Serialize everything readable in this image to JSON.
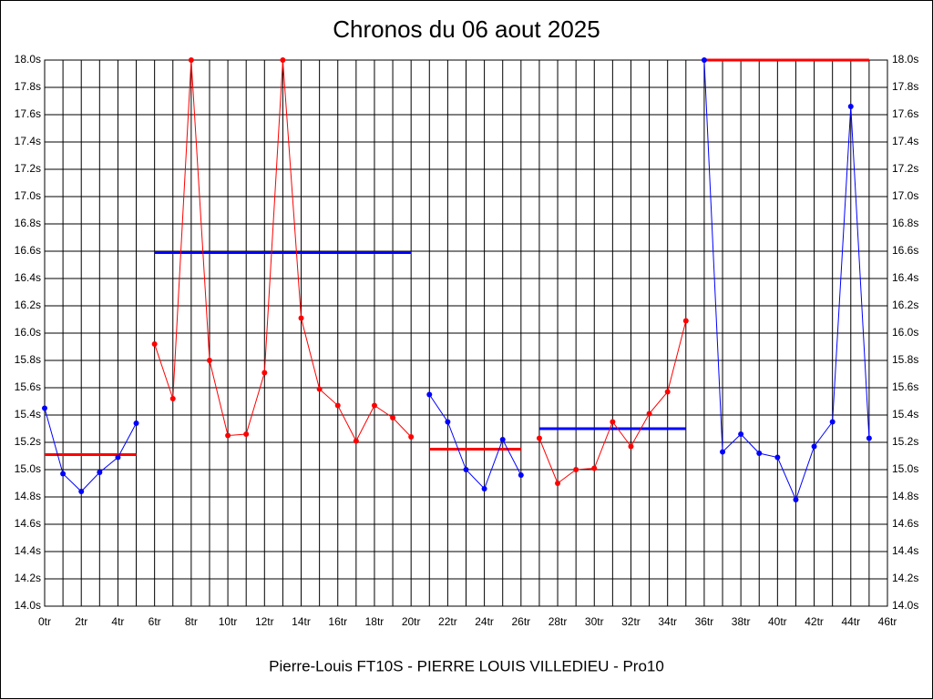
{
  "chart_data": {
    "type": "line",
    "title": "Chronos du 06 aout 2025",
    "footer": "Pierre-Louis FT10S - PIERRE LOUIS VILLEDIEU - Pro10",
    "xlim": [
      0,
      46
    ],
    "ylim": [
      14.0,
      18.0
    ],
    "grid": true,
    "mirror_y_axis": true,
    "xticks": [
      {
        "value": 0,
        "label": "0tr"
      },
      {
        "value": 2,
        "label": "2tr"
      },
      {
        "value": 4,
        "label": "4tr"
      },
      {
        "value": 6,
        "label": "6tr"
      },
      {
        "value": 8,
        "label": "8tr"
      },
      {
        "value": 10,
        "label": "10tr"
      },
      {
        "value": 12,
        "label": "12tr"
      },
      {
        "value": 14,
        "label": "14tr"
      },
      {
        "value": 16,
        "label": "16tr"
      },
      {
        "value": 18,
        "label": "18tr"
      },
      {
        "value": 20,
        "label": "20tr"
      },
      {
        "value": 22,
        "label": "22tr"
      },
      {
        "value": 24,
        "label": "24tr"
      },
      {
        "value": 26,
        "label": "26tr"
      },
      {
        "value": 28,
        "label": "28tr"
      },
      {
        "value": 30,
        "label": "30tr"
      },
      {
        "value": 32,
        "label": "32tr"
      },
      {
        "value": 34,
        "label": "34tr"
      },
      {
        "value": 36,
        "label": "36tr"
      },
      {
        "value": 38,
        "label": "38tr"
      },
      {
        "value": 40,
        "label": "40tr"
      },
      {
        "value": 42,
        "label": "42tr"
      },
      {
        "value": 44,
        "label": "44tr"
      },
      {
        "value": 46,
        "label": "46tr"
      }
    ],
    "xminorticks": [
      1,
      3,
      5,
      7,
      9,
      11,
      13,
      15,
      17,
      19,
      21,
      23,
      25,
      27,
      29,
      31,
      33,
      35,
      37,
      39,
      41,
      43,
      45
    ],
    "yticks": [
      {
        "value": 14.0,
        "label": "14.0s"
      },
      {
        "value": 14.2,
        "label": "14.2s"
      },
      {
        "value": 14.4,
        "label": "14.4s"
      },
      {
        "value": 14.6,
        "label": "14.6s"
      },
      {
        "value": 14.8,
        "label": "14.8s"
      },
      {
        "value": 15.0,
        "label": "15.0s"
      },
      {
        "value": 15.2,
        "label": "15.2s"
      },
      {
        "value": 15.4,
        "label": "15.4s"
      },
      {
        "value": 15.6,
        "label": "15.6s"
      },
      {
        "value": 15.8,
        "label": "15.8s"
      },
      {
        "value": 16.0,
        "label": "16.0s"
      },
      {
        "value": 16.2,
        "label": "16.2s"
      },
      {
        "value": 16.4,
        "label": "16.4s"
      },
      {
        "value": 16.6,
        "label": "16.6s"
      },
      {
        "value": 16.8,
        "label": "16.8s"
      },
      {
        "value": 17.0,
        "label": "17.0s"
      },
      {
        "value": 17.2,
        "label": "17.2s"
      },
      {
        "value": 17.4,
        "label": "17.4s"
      },
      {
        "value": 17.6,
        "label": "17.6s"
      },
      {
        "value": 17.8,
        "label": "17.8s"
      },
      {
        "value": 18.0,
        "label": "18.0s"
      }
    ],
    "series": [
      {
        "color": "#0000ff",
        "x": [
          0,
          1,
          2,
          3,
          4,
          5
        ],
        "values": [
          15.45,
          14.97,
          14.84,
          14.98,
          15.09,
          15.34
        ]
      },
      {
        "color": "#ff0000",
        "x": [
          6,
          7,
          8,
          9,
          10,
          11,
          12,
          13,
          14,
          15,
          16,
          17,
          18,
          19,
          20
        ],
        "values": [
          15.92,
          15.52,
          18.0,
          15.8,
          15.25,
          15.26,
          15.71,
          18.0,
          16.11,
          15.59,
          15.47,
          15.21,
          15.47,
          15.38,
          15.24
        ]
      },
      {
        "color": "#0000ff",
        "x": [
          21,
          22,
          23,
          24,
          25,
          26
        ],
        "values": [
          15.55,
          15.35,
          15.0,
          14.86,
          15.22,
          14.96
        ]
      },
      {
        "color": "#ff0000",
        "x": [
          27,
          28,
          29,
          30,
          31,
          32,
          33,
          34,
          35
        ],
        "values": [
          15.23,
          14.9,
          15.0,
          15.01,
          15.35,
          15.17,
          15.41,
          15.57,
          16.09
        ]
      },
      {
        "color": "#0000ff",
        "x": [
          36,
          37,
          38,
          39,
          40,
          41,
          42,
          43,
          44,
          45
        ],
        "values": [
          18.0,
          15.13,
          15.26,
          15.12,
          15.09,
          14.78,
          15.17,
          15.35,
          17.66,
          15.23
        ]
      }
    ],
    "mean_lines": [
      {
        "color": "#ff0000",
        "x": [
          0,
          5
        ],
        "value": 15.11
      },
      {
        "color": "#0000ff",
        "x": [
          6,
          20
        ],
        "value": 16.59
      },
      {
        "color": "#ff0000",
        "x": [
          21,
          26
        ],
        "value": 15.15
      },
      {
        "color": "#0000ff",
        "x": [
          27,
          35
        ],
        "value": 15.3
      },
      {
        "color": "#ff0000",
        "x": [
          36,
          45
        ],
        "value": 18.0
      }
    ]
  }
}
